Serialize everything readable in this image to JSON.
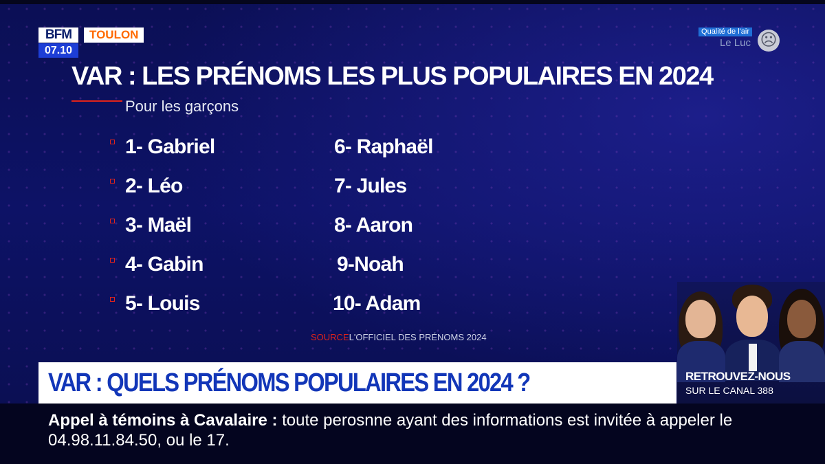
{
  "channel": {
    "logo": "BFM",
    "clock": "07.10",
    "city": "TOULON"
  },
  "air_quality": {
    "label": "Qualité de l'air",
    "city": "Le Luc",
    "icon": "sad-face-icon"
  },
  "slide": {
    "title": "VAR : LES PRÉNOMS LES PLUS POPULAIRES EN 2024",
    "subtitle": "Pour les garçons",
    "names": [
      "1- Gabriel",
      "2- Léo",
      "3- Maël",
      "4- Gabin",
      "5- Louis",
      "6- Raphaël",
      "7- Jules",
      "8- Aaron",
      "9-Noah",
      "10- Adam"
    ],
    "source_label": "SOURCE",
    "source_text": "L'OFFICIEL DES PRÉNOMS 2024"
  },
  "banner": {
    "headline": "VAR : QUELS PRÉNOMS POPULAIRES EN 2024 ?"
  },
  "promo": {
    "line1": "RETROUVEZ-NOUS",
    "line2": "SUR LE CANAL 388"
  },
  "ticker": {
    "lead": "Appel à témoins à Cavalaire",
    "separator": " : ",
    "text": "toute perosnne ayant des informations est invitée à appeler le 04.98.11.84.50, ou le 17."
  },
  "colors": {
    "accent_red": "#e2231a",
    "bfm_blue": "#1d3ed6",
    "headline_blue": "#1236b8",
    "background": "#0b0f55"
  }
}
